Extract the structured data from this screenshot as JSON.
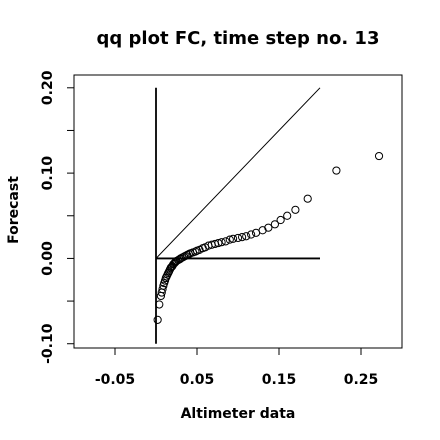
{
  "chart_data": {
    "type": "scatter",
    "title": "qq plot FC, time step no. 13",
    "xlabel": "Altimeter data",
    "ylabel": "Forecast",
    "xlim": [
      -0.1,
      0.3
    ],
    "ylim": [
      -0.105,
      0.215
    ],
    "x_ticks": [
      {
        "value": -0.05,
        "label": "-0.05"
      },
      {
        "value": 0.05,
        "label": "0.05"
      },
      {
        "value": 0.15,
        "label": "0.15"
      },
      {
        "value": 0.25,
        "label": "0.25"
      }
    ],
    "y_ticks": [
      {
        "value": -0.1,
        "label": "-0.10"
      },
      {
        "value": 0.0,
        "label": "0.00"
      },
      {
        "value": 0.1,
        "label": "0.10"
      },
      {
        "value": 0.2,
        "label": "0.20"
      }
    ],
    "y_minor_ticks": [
      -0.05,
      0.05,
      0.15
    ],
    "reference_lines": [
      {
        "name": "diagonal",
        "x": [
          0.0,
          0.2
        ],
        "y": [
          0.0,
          0.2
        ]
      },
      {
        "name": "vertical",
        "x": [
          0.0,
          0.0
        ],
        "y": [
          -0.1,
          0.2
        ]
      },
      {
        "name": "horizontal",
        "x": [
          0.0,
          0.2
        ],
        "y": [
          0.0,
          0.0
        ]
      }
    ],
    "grid": false,
    "points": {
      "x": [
        0.002,
        0.004,
        0.006,
        0.007,
        0.008,
        0.009,
        0.01,
        0.011,
        0.012,
        0.013,
        0.014,
        0.015,
        0.016,
        0.017,
        0.018,
        0.019,
        0.02,
        0.021,
        0.022,
        0.023,
        0.024,
        0.025,
        0.027,
        0.029,
        0.03,
        0.032,
        0.034,
        0.036,
        0.038,
        0.04,
        0.042,
        0.045,
        0.048,
        0.05,
        0.053,
        0.057,
        0.06,
        0.064,
        0.068,
        0.072,
        0.076,
        0.08,
        0.085,
        0.09,
        0.094,
        0.1,
        0.105,
        0.11,
        0.116,
        0.122,
        0.13,
        0.137,
        0.145,
        0.152,
        0.16,
        0.17,
        0.185,
        0.22,
        0.272
      ],
      "y": [
        -0.072,
        -0.054,
        -0.044,
        -0.04,
        -0.036,
        -0.032,
        -0.029,
        -0.026,
        -0.023,
        -0.021,
        -0.019,
        -0.017,
        -0.015,
        -0.013,
        -0.011,
        -0.01,
        -0.009,
        -0.007,
        -0.006,
        -0.005,
        -0.004,
        -0.003,
        -0.002,
        -0.001,
        0.0,
        0.001,
        0.002,
        0.003,
        0.004,
        0.005,
        0.006,
        0.007,
        0.008,
        0.009,
        0.01,
        0.012,
        0.013,
        0.015,
        0.016,
        0.017,
        0.018,
        0.019,
        0.02,
        0.022,
        0.023,
        0.024,
        0.025,
        0.026,
        0.028,
        0.03,
        0.033,
        0.036,
        0.04,
        0.045,
        0.05,
        0.057,
        0.07,
        0.103,
        0.12
      ]
    }
  }
}
